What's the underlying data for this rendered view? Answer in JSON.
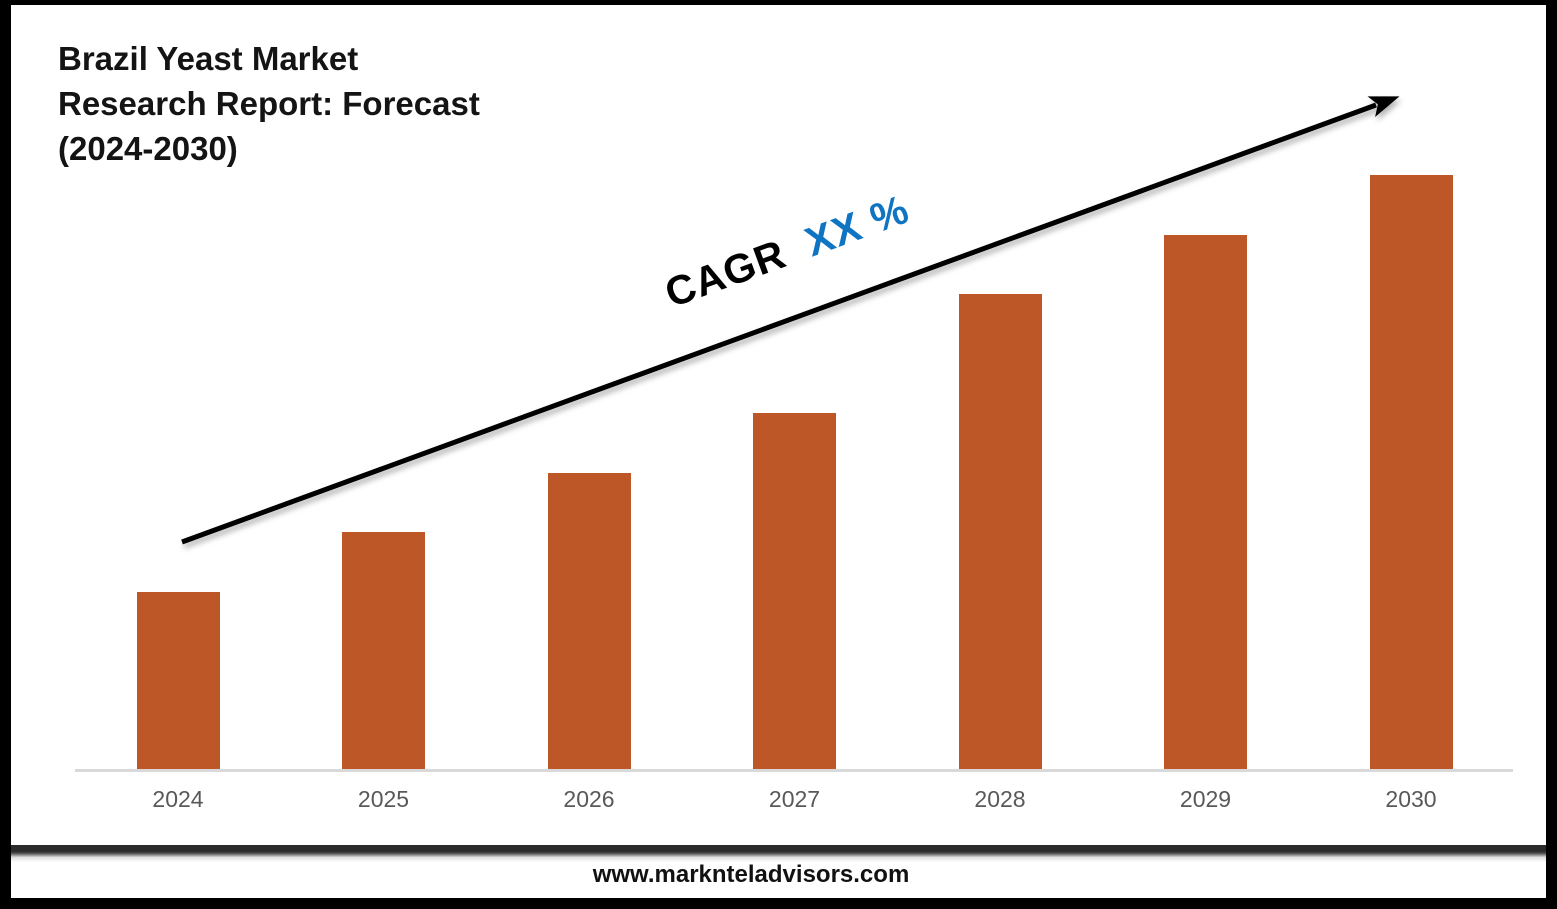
{
  "page": {
    "background": "#ffffff",
    "frame_color": "#000000"
  },
  "title": {
    "lines": [
      "Brazil Yeast Market",
      "Research Report: Forecast",
      "(2024-2030)"
    ]
  },
  "cagr": {
    "prefix": "CAGR",
    "value": "XX %",
    "prefix_color": "#000000",
    "value_color": "#0F74C2"
  },
  "footer": {
    "url": "www.marknteladvisors.com"
  },
  "chart_data": {
    "type": "bar",
    "title": "Brazil Yeast Market Research Report: Forecast (2024-2030)",
    "categories": [
      "2024",
      "2025",
      "2026",
      "2027",
      "2028",
      "2029",
      "2030"
    ],
    "values": [
      30,
      40,
      50,
      60,
      80,
      90,
      100
    ],
    "xlabel": "",
    "ylabel": "",
    "ylim": [
      0,
      100
    ],
    "grid": false,
    "legend": false,
    "y_axis_visible": false,
    "bar_color": "#BE5727",
    "axis_line_color": "#D9D9D9",
    "tick_label_color": "#595959",
    "annotation": {
      "text": "CAGR XX %",
      "arrow_color": "#000000",
      "arrow_direction": "up-right"
    }
  }
}
